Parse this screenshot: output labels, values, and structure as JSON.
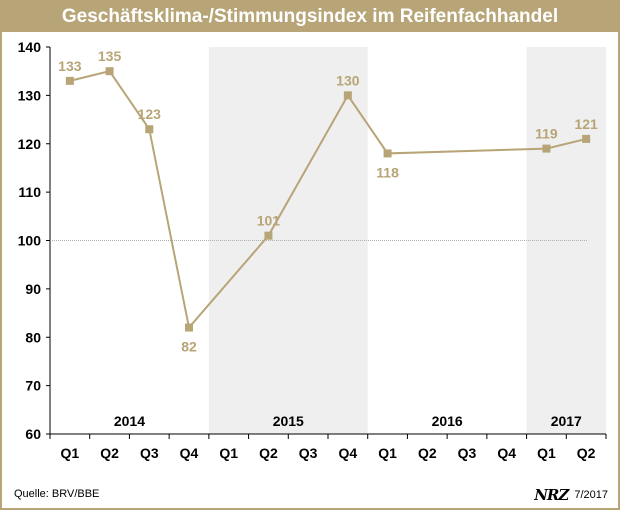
{
  "title": "Geschäftsklima-/Stimmungsindex im Reifenfachhandel",
  "source": "Quelle: BRV/BBE",
  "logo_text": "NRZ",
  "date": "7/2017",
  "colors": {
    "accent": "#b8a577",
    "band": "#efefef",
    "line": "#b8a577"
  },
  "chart_data": {
    "type": "line",
    "title": "Geschäftsklima-/Stimmungsindex im Reifenfachhandel",
    "xlabel": "",
    "ylabel": "",
    "ylim": [
      60,
      140
    ],
    "yticks": [
      60,
      70,
      80,
      90,
      100,
      110,
      120,
      130,
      140
    ],
    "reference_line": 100,
    "grid": false,
    "categories": [
      "Q1",
      "Q2",
      "Q3",
      "Q4",
      "Q1",
      "Q2",
      "Q3",
      "Q4",
      "Q1",
      "Q2",
      "Q3",
      "Q4",
      "Q1",
      "Q2"
    ],
    "years": [
      {
        "label": "2014",
        "start": 0,
        "end": 3,
        "shaded": false
      },
      {
        "label": "2015",
        "start": 4,
        "end": 7,
        "shaded": true
      },
      {
        "label": "2016",
        "start": 8,
        "end": 11,
        "shaded": false
      },
      {
        "label": "2017",
        "start": 12,
        "end": 13,
        "shaded": true
      }
    ],
    "points": [
      {
        "index": 0,
        "value": 133,
        "label_pos": "above"
      },
      {
        "index": 1,
        "value": 135,
        "label_pos": "above"
      },
      {
        "index": 2,
        "value": 123,
        "label_pos": "above"
      },
      {
        "index": 3,
        "value": 82,
        "label_pos": "below"
      },
      {
        "index": 5,
        "value": 101,
        "label_pos": "above"
      },
      {
        "index": 7,
        "value": 130,
        "label_pos": "above"
      },
      {
        "index": 8,
        "value": 118,
        "label_pos": "below"
      },
      {
        "index": 12,
        "value": 119,
        "label_pos": "above"
      },
      {
        "index": 13,
        "value": 121,
        "label_pos": "above"
      }
    ]
  }
}
